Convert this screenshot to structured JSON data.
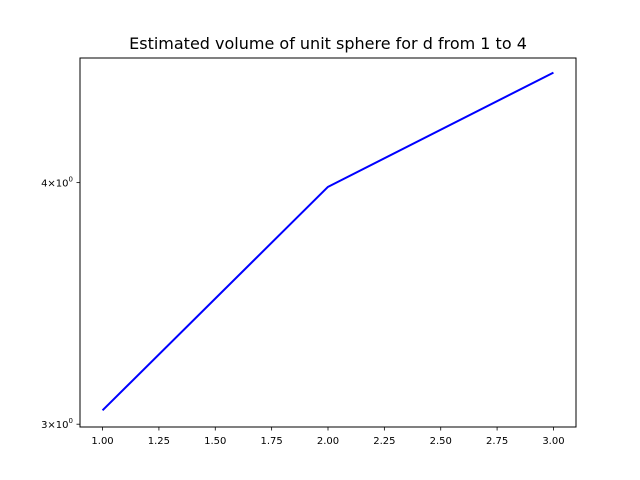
{
  "chart_data": {
    "type": "line",
    "title": "Estimated volume of unit sphere for d from 1 to 4",
    "xlabel": "",
    "ylabel": "",
    "y_scale": "log",
    "grid": false,
    "legend": "none",
    "xlim": [
      0.9,
      3.1
    ],
    "ylim": [
      2.99,
      4.64
    ],
    "x_ticks": [
      {
        "value": 1.0,
        "label": "1.00"
      },
      {
        "value": 1.25,
        "label": "1.25"
      },
      {
        "value": 1.5,
        "label": "1.50"
      },
      {
        "value": 1.75,
        "label": "1.75"
      },
      {
        "value": 2.0,
        "label": "2.00"
      },
      {
        "value": 2.25,
        "label": "2.25"
      },
      {
        "value": 2.5,
        "label": "2.50"
      },
      {
        "value": 2.75,
        "label": "2.75"
      },
      {
        "value": 3.0,
        "label": "3.00"
      }
    ],
    "y_ticks": [
      {
        "value": 3,
        "base": "3",
        "sep": "×",
        "power": "10",
        "exp": "0"
      },
      {
        "value": 4,
        "base": "4",
        "sep": "×",
        "power": "10",
        "exp": "0"
      }
    ],
    "series": [
      {
        "color": "#0000ff",
        "x": [
          1,
          2,
          3
        ],
        "y": [
          3.05,
          3.98,
          4.56
        ]
      }
    ]
  }
}
